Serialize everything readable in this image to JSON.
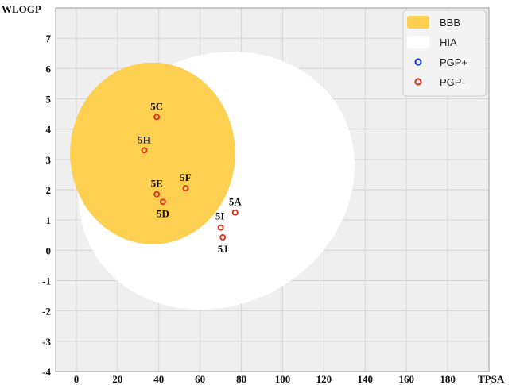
{
  "chart_data": {
    "type": "scatter",
    "title": "",
    "xlabel": "TPSA",
    "ylabel": "WLOGP",
    "xlim": [
      -10,
      200
    ],
    "ylim": [
      -4,
      8
    ],
    "xticks": [
      0,
      20,
      40,
      60,
      80,
      100,
      120,
      140,
      160,
      180
    ],
    "yticks": [
      -4,
      -3,
      -2,
      -1,
      0,
      1,
      2,
      3,
      4,
      5,
      6,
      7
    ],
    "grid": true,
    "legend_position": "top-right",
    "regions": [
      {
        "name": "BBB",
        "type": "ellipse",
        "color": "#fdd052",
        "cx": 37,
        "cy": 3.2,
        "rx": 40,
        "ry": 3.0,
        "angle": 0
      },
      {
        "name": "HIA",
        "type": "ellipse",
        "color": "#ffffff",
        "cx": 68,
        "cy": 2.3,
        "rx": 69,
        "ry": 4.1,
        "angle": -30
      }
    ],
    "legend": [
      {
        "name": "BBB",
        "kind": "patch",
        "color": "#fdd052"
      },
      {
        "name": "HIA",
        "kind": "patch",
        "color": "#ffffff"
      },
      {
        "name": "PGP+",
        "kind": "marker",
        "color": "#1f3ed6"
      },
      {
        "name": "PGP-",
        "kind": "marker",
        "color": "#d93a24"
      }
    ],
    "points": [
      {
        "label": "5C",
        "x": 39,
        "y": 4.4,
        "class": "PGP-",
        "label_pos": "above"
      },
      {
        "label": "5H",
        "x": 33,
        "y": 3.3,
        "class": "PGP-",
        "label_pos": "above"
      },
      {
        "label": "5E",
        "x": 39,
        "y": 1.85,
        "class": "PGP-",
        "label_pos": "above"
      },
      {
        "label": "5F",
        "x": 53,
        "y": 2.05,
        "class": "PGP-",
        "label_pos": "above"
      },
      {
        "label": "5D",
        "x": 42,
        "y": 1.6,
        "class": "PGP-",
        "label_pos": "below"
      },
      {
        "label": "5A",
        "x": 77,
        "y": 1.25,
        "class": "PGP-",
        "label_pos": "above"
      },
      {
        "label": "5I",
        "x": 70,
        "y": 0.75,
        "class": "PGP-",
        "label_pos": "above-left"
      },
      {
        "label": "5J",
        "x": 71,
        "y": 0.43,
        "class": "PGP-",
        "label_pos": "below"
      }
    ]
  }
}
